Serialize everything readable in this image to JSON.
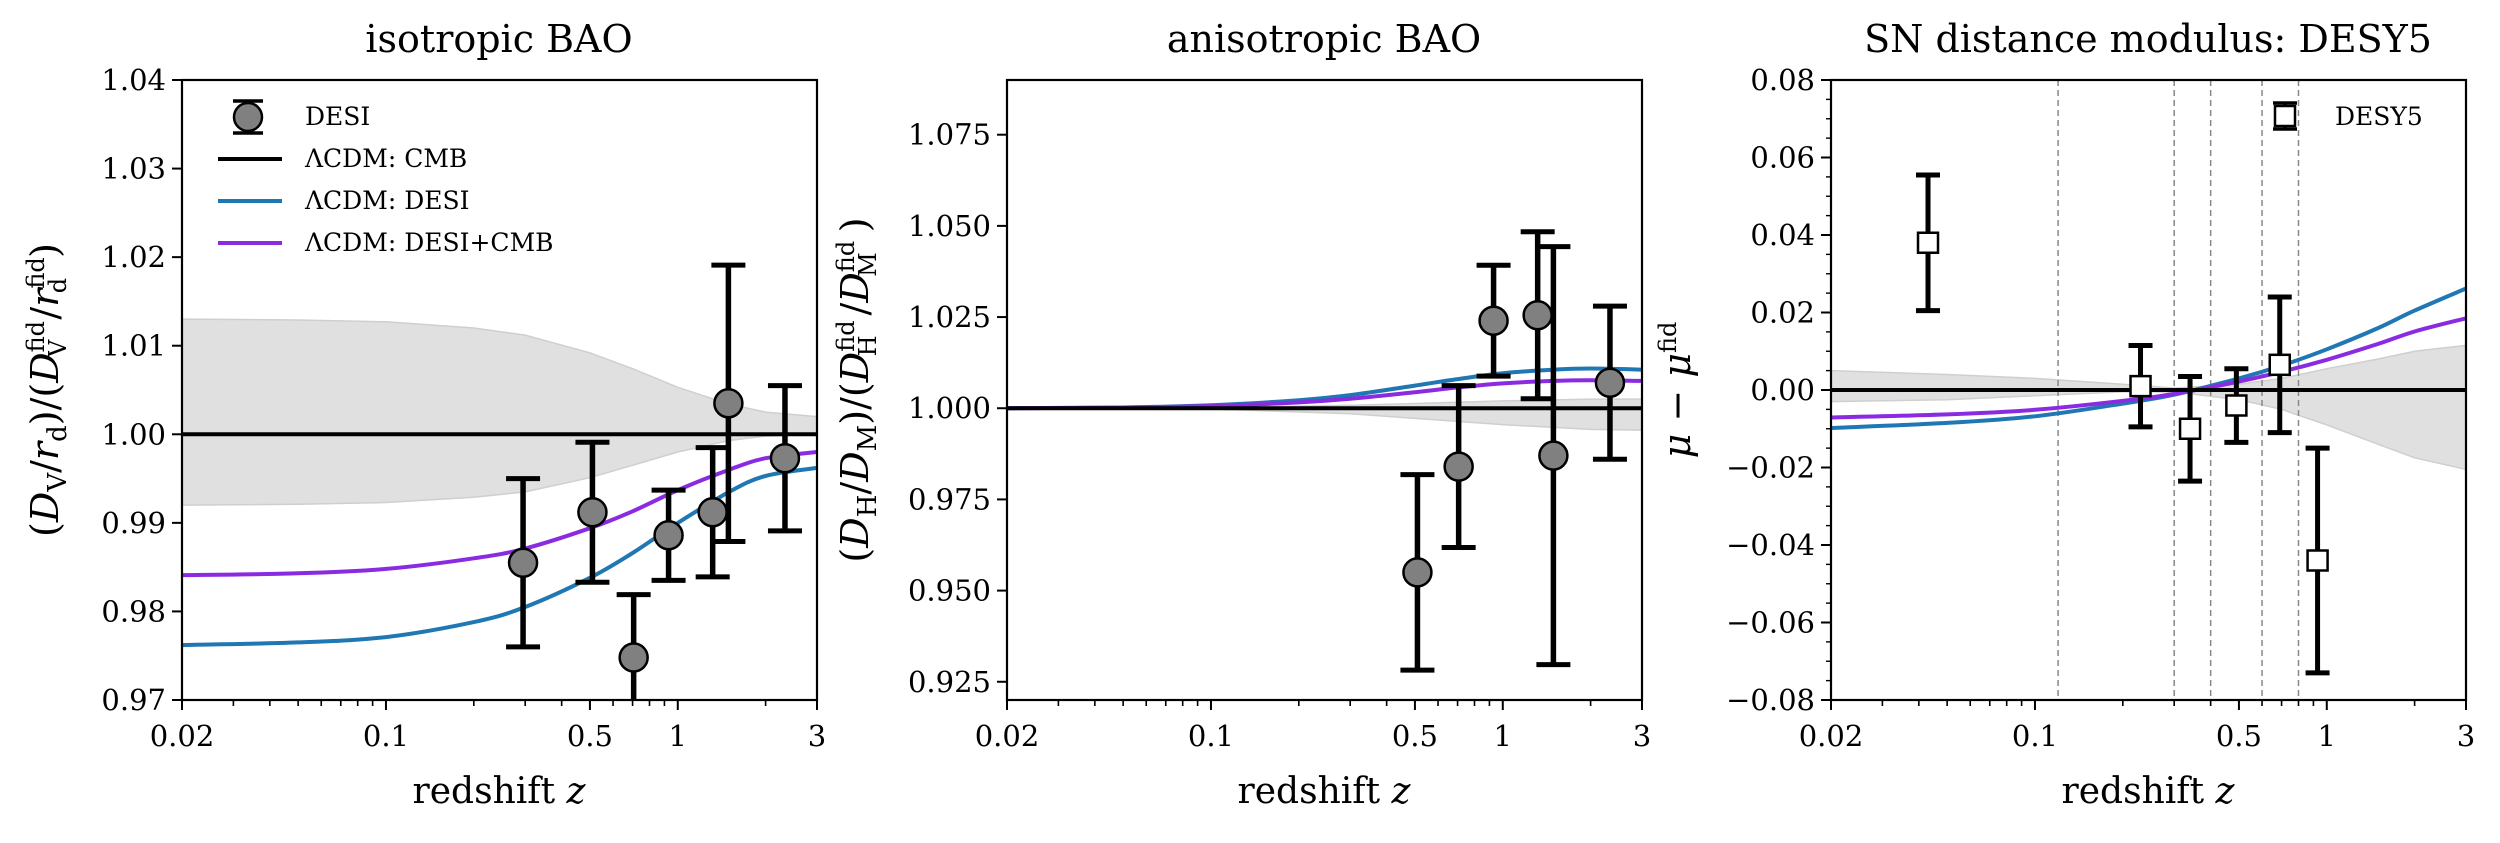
{
  "figure": {
    "panels": [
      {
        "id": "isotropic",
        "title": "isotropic BAO",
        "xlabel_main": "redshift ",
        "xlabel_var": "z",
        "ylabel": "(D_V / r_d) / (D_V^fid / r_d^fid)",
        "ylabel_parts": {
          "open": "(",
          "D1": "D",
          "sub1": "V",
          "slash1": "/",
          "r1": "r",
          "sub1b": "d",
          "close1": ")/(",
          "D2": "D",
          "sub2": "V",
          "sup2": "fid",
          "slash2": "/",
          "r2": "r",
          "sub2b": "d",
          "sup2b": "fid",
          "close2": ")"
        },
        "xtick_labels": [
          "0.02",
          "0.1",
          "0.5",
          "1",
          "3"
        ],
        "ytick_labels": [
          "0.97",
          "0.98",
          "0.99",
          "1.00",
          "1.01",
          "1.02",
          "1.03",
          "1.04"
        ],
        "legend": [
          "DESI",
          "ΛCDM: CMB",
          "ΛCDM: DESI",
          "ΛCDM: DESI+CMB"
        ]
      },
      {
        "id": "anisotropic",
        "title": "anisotropic BAO",
        "xlabel_main": "redshift ",
        "xlabel_var": "z",
        "ylabel": "(D_H / D_M) / (D_H^fid / D_M^fid)",
        "ylabel_parts": {
          "open": "(",
          "D1": "D",
          "sub1": "H",
          "slash1": "/",
          "r1": "D",
          "sub1b": "M",
          "close1": ")/(",
          "D2": "D",
          "sub2": "H",
          "sup2": "fid",
          "slash2": "/",
          "r2": "D",
          "sub2b": "M",
          "sup2b": "fid",
          "close2": ")"
        },
        "xtick_labels": [
          "0.02",
          "0.1",
          "0.5",
          "1",
          "3"
        ],
        "ytick_labels": [
          "0.925",
          "0.950",
          "0.975",
          "1.000",
          "1.025",
          "1.050",
          "1.075"
        ]
      },
      {
        "id": "sn",
        "title": "SN distance modulus: DESY5",
        "xlabel_main": "redshift ",
        "xlabel_var": "z",
        "ylabel": "μ − μ^fid",
        "ylabel_parts": {
          "mu1": "μ − μ",
          "sup": "fid"
        },
        "xtick_labels": [
          "0.02",
          "0.1",
          "0.5",
          "1",
          "3"
        ],
        "ytick_labels": [
          "−0.08",
          "−0.06",
          "−0.04",
          "−0.02",
          "0.00",
          "0.02",
          "0.04",
          "0.06",
          "0.08"
        ],
        "legend": [
          "DESY5"
        ]
      }
    ],
    "colors": {
      "cmb": "#000000",
      "desi": "#1f77b4",
      "desi_cmb": "#8a2be2",
      "band": "#cfcfcf",
      "marker_fill": "#808080",
      "sn_marker_fill": "#ffffff"
    }
  },
  "chart_data": [
    {
      "type": "scatter",
      "title": "isotropic BAO",
      "xlabel": "redshift z",
      "ylabel": "(D_V/r_d)/(D_V^fid/r_d^fid)",
      "xscale": "log",
      "xlim": [
        0.02,
        3
      ],
      "ylim": [
        0.97,
        1.04
      ],
      "xticks": [
        0.02,
        0.1,
        0.5,
        1,
        3
      ],
      "yticks": [
        0.97,
        0.98,
        0.99,
        1.0,
        1.01,
        1.02,
        1.03,
        1.04
      ],
      "legend_position": "top-left",
      "series": [
        {
          "name": "DESI",
          "kind": "errorbar",
          "x": [
            0.295,
            0.51,
            0.706,
            0.93,
            1.317,
            1.491,
            2.33
          ],
          "y": [
            0.9855,
            0.9912,
            0.9748,
            0.9886,
            0.9912,
            1.0035,
            0.9973
          ],
          "yerr": [
            0.0095,
            0.0079,
            0.0071,
            0.0051,
            0.0073,
            0.0156,
            0.0082
          ]
        },
        {
          "name": "ΛCDM: CMB",
          "kind": "line",
          "x": [
            0.02,
            0.1,
            0.5,
            1,
            2,
            3
          ],
          "y": [
            1.0,
            1.0,
            1.0,
            1.0,
            1.0,
            1.0
          ]
        },
        {
          "name": "ΛCDM: DESI",
          "kind": "line",
          "x": [
            0.02,
            0.05,
            0.1,
            0.2,
            0.3,
            0.5,
            0.7,
            1.0,
            1.5,
            2.0,
            3.0
          ],
          "y": [
            0.9762,
            0.9765,
            0.9771,
            0.9788,
            0.9805,
            0.9838,
            0.9866,
            0.99,
            0.9935,
            0.9953,
            0.9962
          ]
        },
        {
          "name": "ΛCDM: DESI+CMB",
          "kind": "line",
          "x": [
            0.02,
            0.05,
            0.1,
            0.2,
            0.3,
            0.5,
            0.7,
            1.0,
            1.5,
            2.0,
            3.0
          ],
          "y": [
            0.9841,
            0.9843,
            0.9848,
            0.986,
            0.9871,
            0.9894,
            0.9913,
            0.9937,
            0.996,
            0.9973,
            0.998
          ]
        },
        {
          "name": "CMB uncertainty band",
          "kind": "band",
          "x": [
            0.02,
            0.05,
            0.1,
            0.2,
            0.3,
            0.5,
            0.7,
            1.0,
            1.5,
            2.0,
            3.0
          ],
          "upper": [
            1.013,
            1.0129,
            1.0127,
            1.012,
            1.0112,
            1.0092,
            1.0074,
            1.0053,
            1.0034,
            1.0025,
            1.002
          ],
          "lower": [
            0.992,
            0.9921,
            0.9923,
            0.9929,
            0.9935,
            0.9951,
            0.9965,
            0.998,
            0.9993,
            0.9998,
            1.0
          ]
        }
      ]
    },
    {
      "type": "scatter",
      "title": "anisotropic BAO",
      "xlabel": "redshift z",
      "ylabel": "(D_H/D_M)/(D_H^fid/D_M^fid)",
      "xscale": "log",
      "xlim": [
        0.02,
        3
      ],
      "ylim": [
        0.92,
        1.09
      ],
      "xticks": [
        0.02,
        0.1,
        0.5,
        1,
        3
      ],
      "yticks": [
        0.925,
        0.95,
        0.975,
        1.0,
        1.025,
        1.05,
        1.075
      ],
      "series": [
        {
          "name": "DESI",
          "kind": "errorbar",
          "x": [
            0.51,
            0.706,
            0.93,
            1.317,
            1.491,
            2.33
          ],
          "y": [
            0.955,
            0.984,
            1.024,
            1.0255,
            0.987,
            1.007
          ],
          "yerr": [
            0.0268,
            0.0222,
            0.0152,
            0.0229,
            0.0573,
            0.021
          ]
        },
        {
          "name": "ΛCDM: CMB",
          "kind": "line",
          "x": [
            0.02,
            3
          ],
          "y": [
            1.0,
            1.0
          ]
        },
        {
          "name": "ΛCDM: DESI",
          "kind": "line",
          "x": [
            0.02,
            0.05,
            0.1,
            0.2,
            0.3,
            0.5,
            0.7,
            1.0,
            1.5,
            2.0,
            3.0
          ],
          "y": [
            1.0,
            1.0002,
            1.0008,
            1.0022,
            1.0036,
            1.0062,
            1.008,
            1.0096,
            1.0106,
            1.0109,
            1.0106
          ]
        },
        {
          "name": "ΛCDM: DESI+CMB",
          "kind": "line",
          "x": [
            0.02,
            0.05,
            0.1,
            0.2,
            0.3,
            0.5,
            0.7,
            1.0,
            1.5,
            2.0,
            3.0
          ],
          "y": [
            1.0,
            1.0002,
            1.0006,
            1.0016,
            1.0026,
            1.0044,
            1.0057,
            1.0068,
            1.0075,
            1.0077,
            1.0075
          ]
        },
        {
          "name": "CMB uncertainty band",
          "kind": "band",
          "x": [
            0.02,
            0.1,
            0.3,
            0.5,
            1.0,
            2.0,
            3.0
          ],
          "upper": [
            1.0,
            1.0002,
            1.0008,
            1.0013,
            1.002,
            1.0025,
            1.0025
          ],
          "lower": [
            1.0,
            0.9998,
            0.9985,
            0.9972,
            0.9955,
            0.9942,
            0.994
          ]
        }
      ]
    },
    {
      "type": "scatter",
      "title": "SN distance modulus: DESY5",
      "xlabel": "redshift z",
      "ylabel": "μ − μ^fid",
      "xscale": "log",
      "xlim": [
        0.02,
        3
      ],
      "ylim": [
        -0.08,
        0.08
      ],
      "xticks": [
        0.02,
        0.1,
        0.5,
        1,
        3
      ],
      "yticks": [
        -0.08,
        -0.06,
        -0.04,
        -0.02,
        0.0,
        0.02,
        0.04,
        0.06,
        0.08
      ],
      "legend_position": "top-right",
      "bin_edges": [
        0.12,
        0.3,
        0.4,
        0.6,
        0.8
      ],
      "series": [
        {
          "name": "DESY5",
          "kind": "errorbar",
          "x": [
            0.043,
            0.23,
            0.34,
            0.49,
            0.69,
            0.93
          ],
          "y": [
            0.038,
            0.001,
            -0.01,
            -0.004,
            0.0065,
            -0.044
          ],
          "yerr": [
            0.0175,
            0.0105,
            0.0135,
            0.0095,
            0.0175,
            0.029
          ]
        },
        {
          "name": "ΛCDM: CMB",
          "kind": "line",
          "x": [
            0.02,
            3
          ],
          "y": [
            0.0,
            0.0
          ]
        },
        {
          "name": "ΛCDM: DESI",
          "kind": "line",
          "x": [
            0.02,
            0.05,
            0.1,
            0.2,
            0.3,
            0.5,
            0.7,
            1.0,
            1.5,
            2.0,
            3.0
          ],
          "y": [
            -0.0098,
            -0.0085,
            -0.0068,
            -0.0035,
            -0.0012,
            0.003,
            0.0063,
            0.0105,
            0.016,
            0.0205,
            0.0262
          ]
        },
        {
          "name": "ΛCDM: DESI+CMB",
          "kind": "line",
          "x": [
            0.02,
            0.05,
            0.1,
            0.2,
            0.3,
            0.5,
            0.7,
            1.0,
            1.5,
            2.0,
            3.0
          ],
          "y": [
            -0.0071,
            -0.0063,
            -0.0051,
            -0.0028,
            -0.001,
            0.0022,
            0.0047,
            0.0078,
            0.0119,
            0.0151,
            0.0185
          ]
        },
        {
          "name": "CMB uncertainty band",
          "kind": "band",
          "x": [
            0.02,
            0.05,
            0.1,
            0.2,
            0.3,
            0.5,
            0.7,
            1.0,
            1.5,
            2.0,
            3.0
          ],
          "upper": [
            0.005,
            0.004,
            0.003,
            0.0015,
            0.0005,
            0.0015,
            0.003,
            0.0055,
            0.008,
            0.01,
            0.0115
          ],
          "lower": [
            -0.003,
            -0.0025,
            -0.0015,
            -0.0005,
            -0.0005,
            -0.0025,
            -0.005,
            -0.009,
            -0.014,
            -0.0175,
            -0.0205
          ]
        }
      ]
    }
  ]
}
